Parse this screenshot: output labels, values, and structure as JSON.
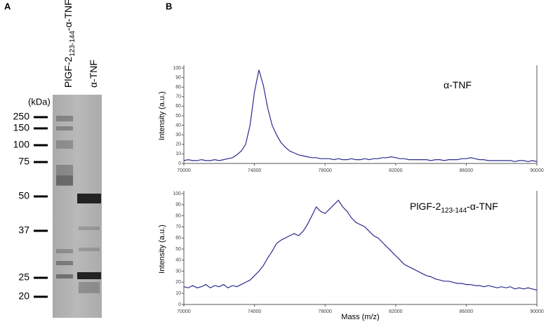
{
  "panel_a": {
    "label": "A",
    "lanes": [
      [
        "PlGF-2",
        "123-144",
        "-α-TNF"
      ],
      [
        "α-TNF"
      ]
    ],
    "unit": "(kDa)",
    "markers": [
      "250",
      "150",
      "100",
      "75",
      "50",
      "37",
      "25",
      "20"
    ]
  },
  "panel_b": {
    "label": "B"
  },
  "chart_data": [
    {
      "type": "line",
      "annotation": [
        "α-TNF"
      ],
      "y_label": "Intensity (a.u.)",
      "x": [
        70000,
        70250,
        70500,
        70750,
        71000,
        71250,
        71500,
        71750,
        72000,
        72250,
        72500,
        72750,
        73000,
        73250,
        73500,
        73750,
        74000,
        74250,
        74500,
        74750,
        75000,
        75250,
        75500,
        75750,
        76000,
        76250,
        76500,
        76750,
        77000,
        77250,
        77500,
        77750,
        78000,
        78250,
        78500,
        78750,
        79000,
        79250,
        79500,
        79750,
        80000,
        80250,
        80500,
        80750,
        81000,
        81250,
        81500,
        81750,
        82000,
        82250,
        82500,
        82750,
        83000,
        83250,
        83500,
        83750,
        84000,
        84250,
        84500,
        84750,
        85000,
        85250,
        85500,
        85750,
        86000,
        86250,
        86500,
        86750,
        87000,
        87250,
        87500,
        87750,
        88000,
        88250,
        88500,
        88750,
        89000,
        89250,
        89500,
        89750,
        90000
      ],
      "series": [
        {
          "color": "#2b2b8f",
          "values": [
            3,
            4,
            3,
            3,
            4,
            3,
            3,
            4,
            3,
            4,
            5,
            6,
            9,
            13,
            20,
            40,
            75,
            98,
            82,
            58,
            40,
            30,
            22,
            17,
            13,
            11,
            9,
            8,
            7,
            6,
            6,
            5,
            5,
            5,
            4,
            5,
            4,
            4,
            5,
            4,
            4,
            5,
            4,
            5,
            5,
            6,
            6,
            7,
            6,
            5,
            5,
            4,
            4,
            4,
            4,
            4,
            3,
            4,
            4,
            3,
            4,
            4,
            4,
            5,
            5,
            6,
            5,
            4,
            4,
            3,
            3,
            3,
            3,
            3,
            3,
            2,
            3,
            3,
            2,
            3,
            2
          ]
        }
      ],
      "xlim": [
        70000,
        90000
      ],
      "ylim": [
        0,
        100
      ],
      "xticks": [
        70000,
        74000,
        78000,
        82000,
        86000,
        90000
      ],
      "yticks": [
        0,
        10,
        20,
        30,
        40,
        50,
        60,
        70,
        80,
        90,
        100
      ]
    },
    {
      "type": "line",
      "annotation": [
        "PlGF-2",
        "123-144",
        "-α-TNF"
      ],
      "y_label": "Intensity (a.u.)",
      "x_label": "Mass (m/z)",
      "x": [
        70000,
        70250,
        70500,
        70750,
        71000,
        71250,
        71500,
        71750,
        72000,
        72250,
        72500,
        72750,
        73000,
        73250,
        73500,
        73750,
        74000,
        74250,
        74500,
        74750,
        75000,
        75250,
        75500,
        75750,
        76000,
        76250,
        76500,
        76750,
        77000,
        77250,
        77500,
        77750,
        78000,
        78250,
        78500,
        78750,
        79000,
        79250,
        79500,
        79750,
        80000,
        80250,
        80500,
        80750,
        81000,
        81250,
        81500,
        81750,
        82000,
        82250,
        82500,
        82750,
        83000,
        83250,
        83500,
        83750,
        84000,
        84250,
        84500,
        84750,
        85000,
        85250,
        85500,
        85750,
        86000,
        86250,
        86500,
        86750,
        87000,
        87250,
        87500,
        87750,
        88000,
        88250,
        88500,
        88750,
        89000,
        89250,
        89500,
        89750,
        90000
      ],
      "series": [
        {
          "color": "#2b2b8f",
          "values": [
            16,
            15,
            17,
            15,
            16,
            18,
            15,
            17,
            16,
            18,
            15,
            17,
            16,
            18,
            20,
            22,
            26,
            30,
            35,
            42,
            48,
            55,
            58,
            60,
            62,
            64,
            62,
            66,
            72,
            80,
            88,
            84,
            82,
            86,
            90,
            94,
            88,
            84,
            78,
            74,
            72,
            70,
            66,
            62,
            60,
            56,
            52,
            48,
            44,
            40,
            36,
            34,
            32,
            30,
            28,
            26,
            25,
            23,
            22,
            21,
            21,
            20,
            19,
            19,
            18,
            18,
            17,
            17,
            16,
            17,
            16,
            15,
            16,
            15,
            16,
            14,
            15,
            14,
            15,
            14,
            13
          ]
        }
      ],
      "xlim": [
        70000,
        90000
      ],
      "ylim": [
        0,
        100
      ],
      "xticks": [
        70000,
        74000,
        78000,
        82000,
        86000,
        90000
      ],
      "yticks": [
        0,
        10,
        20,
        30,
        40,
        50,
        60,
        70,
        80,
        90,
        100
      ]
    }
  ]
}
